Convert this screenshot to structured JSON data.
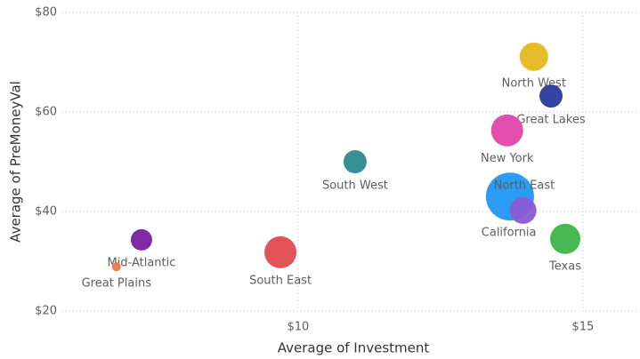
{
  "chart_data": {
    "type": "scatter",
    "x_label": "Average of Investment",
    "y_label": "Average of PreMoneyVal",
    "categories": [
      "North West",
      "Great Lakes",
      "New York",
      "South West",
      "North East",
      "California",
      "Texas",
      "Mid-Atlantic",
      "Great Plains",
      "South East"
    ],
    "x": [
      14.14,
      14.44,
      13.67,
      11.0,
      13.72,
      13.95,
      14.69,
      7.25,
      6.81,
      9.69
    ],
    "y": [
      71.1,
      63.2,
      56.3,
      50.0,
      43.0,
      40.2,
      34.5,
      34.3,
      28.9,
      31.8
    ],
    "sizes": [
      16,
      13,
      18,
      13,
      27,
      15,
      17,
      12,
      5,
      18
    ],
    "colors": [
      "#e6b820",
      "#2b3a9c",
      "#e046a8",
      "#2a8a8e",
      "#2196f3",
      "#8c5ad4",
      "#3cb54a",
      "#7a1fa0",
      "#e8794a",
      "#e04a4e"
    ],
    "xlim": [
      5.86,
      15.94
    ],
    "xticks": [
      {
        "value": 10,
        "label": "$10"
      },
      {
        "value": 15,
        "label": "$15"
      }
    ],
    "ylim": [
      20,
      80
    ],
    "yticks": [
      {
        "value": 20,
        "label": "$20"
      },
      {
        "value": 40,
        "label": "$40"
      },
      {
        "value": 60,
        "label": "$60"
      },
      {
        "value": 80,
        "label": "$80"
      }
    ],
    "grid": true
  }
}
